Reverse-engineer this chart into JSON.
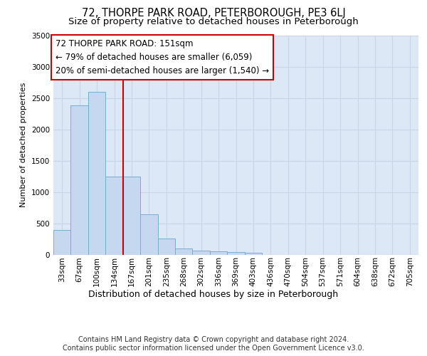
{
  "title1": "72, THORPE PARK ROAD, PETERBOROUGH, PE3 6LJ",
  "title2": "Size of property relative to detached houses in Peterborough",
  "xlabel": "Distribution of detached houses by size in Peterborough",
  "ylabel": "Number of detached properties",
  "footer1": "Contains HM Land Registry data © Crown copyright and database right 2024.",
  "footer2": "Contains public sector information licensed under the Open Government Licence v3.0.",
  "annotation_line1": "72 THORPE PARK ROAD: 151sqm",
  "annotation_line2": "← 79% of detached houses are smaller (6,059)",
  "annotation_line3": "20% of semi-detached houses are larger (1,540) →",
  "bar_labels": [
    "33sqm",
    "67sqm",
    "100sqm",
    "134sqm",
    "167sqm",
    "201sqm",
    "235sqm",
    "268sqm",
    "302sqm",
    "336sqm",
    "369sqm",
    "403sqm",
    "436sqm",
    "470sqm",
    "504sqm",
    "537sqm",
    "571sqm",
    "604sqm",
    "638sqm",
    "672sqm",
    "705sqm"
  ],
  "bar_values": [
    390,
    2390,
    2600,
    1250,
    1250,
    640,
    260,
    100,
    60,
    55,
    40,
    30,
    0,
    0,
    0,
    0,
    0,
    0,
    0,
    0,
    0
  ],
  "bar_color": "#c5d8f0",
  "bar_edge_color": "#7aadd4",
  "vline_x": 3.5,
  "vline_color": "#cc0000",
  "ylim": [
    0,
    3500
  ],
  "yticks": [
    0,
    500,
    1000,
    1500,
    2000,
    2500,
    3000,
    3500
  ],
  "grid_color": "#c8d4e8",
  "bg_color": "#dce8f5",
  "annotation_box_color": "#cc0000",
  "title1_fontsize": 10.5,
  "title2_fontsize": 9.5,
  "footer_fontsize": 7,
  "xlabel_fontsize": 9,
  "ylabel_fontsize": 8,
  "annot_fontsize": 8.5,
  "tick_fontsize": 7.5
}
